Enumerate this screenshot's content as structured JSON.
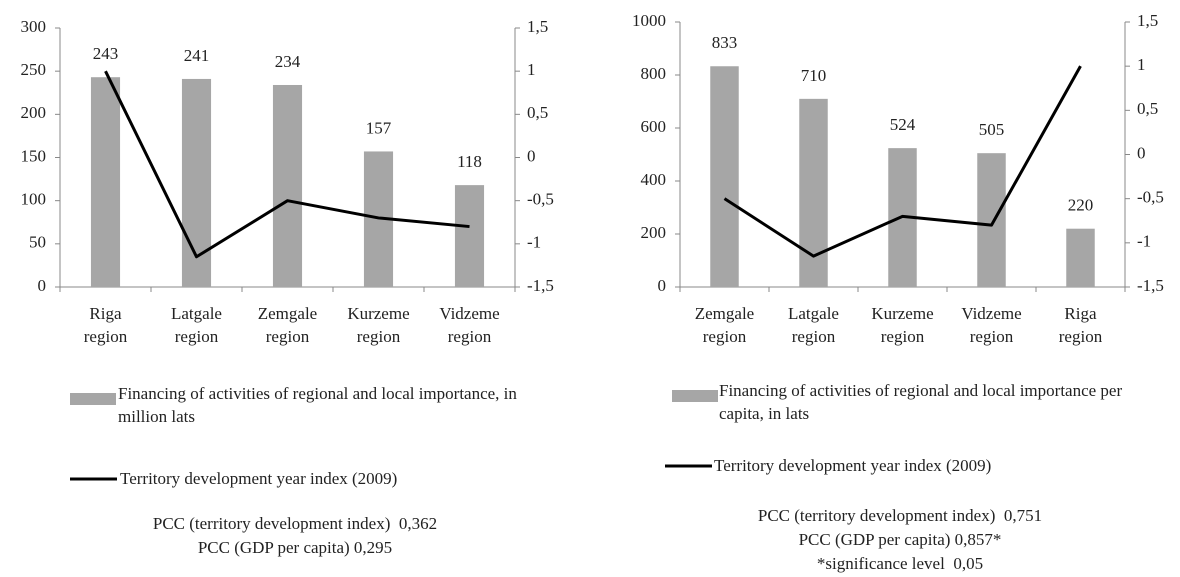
{
  "chart_data": [
    {
      "type": "combo",
      "categories": [
        "Riga region",
        "Latgale region",
        "Zemgale region",
        "Kurzeme region",
        "Vidzeme region"
      ],
      "series": [
        {
          "name": "Financing of activities of regional and local importance, in million lats",
          "color": "#a6a6a6",
          "type": "bar",
          "values": [
            243,
            241,
            234,
            157,
            118
          ]
        },
        {
          "name": "Territory development year index (2009)",
          "color": "#000000",
          "type": "line",
          "axis": "y2",
          "values": [
            1,
            -1.15,
            -0.5,
            -0.7,
            -0.8
          ]
        }
      ],
      "ylim": [
        0,
        300
      ],
      "yticks": [
        0,
        50,
        100,
        150,
        200,
        250,
        300
      ],
      "y2lim": [
        -1.5,
        1.5
      ],
      "y2ticks": [
        {
          "value": -1.5,
          "label": "-1,5"
        },
        -1,
        {
          "value": -0.5,
          "label": "-0,5"
        },
        0,
        {
          "value": 0.5,
          "label": "0,5"
        },
        1,
        {
          "value": 1.5,
          "label": "1,5"
        }
      ],
      "grid": false,
      "notes": [
        "PCC (territory development index)  0,362",
        "PCC (GDP per capita) 0,295"
      ]
    },
    {
      "type": "combo",
      "categories": [
        "Zemgale region",
        "Latgale region",
        "Kurzeme region",
        "Vidzeme region",
        "Riga region"
      ],
      "series": [
        {
          "name": "Financing of activities of regional and local importance per capita, in lats",
          "color": "#a6a6a6",
          "type": "bar",
          "values": [
            833,
            710,
            524,
            505,
            220
          ]
        },
        {
          "name": "Territory development year index (2009)",
          "color": "#000000",
          "type": "line",
          "axis": "y2",
          "values": [
            -0.5,
            -1.15,
            -0.7,
            -0.8,
            1
          ]
        }
      ],
      "ylim": [
        0,
        1000
      ],
      "yticks": [
        0,
        200,
        400,
        600,
        800,
        1000
      ],
      "y2lim": [
        -1.5,
        1.5
      ],
      "y2ticks": [
        {
          "value": -1.5,
          "label": "-1,5"
        },
        -1,
        {
          "value": -0.5,
          "label": "-0,5"
        },
        0,
        {
          "value": 0.5,
          "label": "0,5"
        },
        1,
        {
          "value": 1.5,
          "label": "1,5"
        }
      ],
      "grid": false,
      "notes": [
        "PCC (territory development index)  0,751",
        "PCC (GDP per capita) 0,857*",
        "*significance level  0,05"
      ]
    }
  ]
}
